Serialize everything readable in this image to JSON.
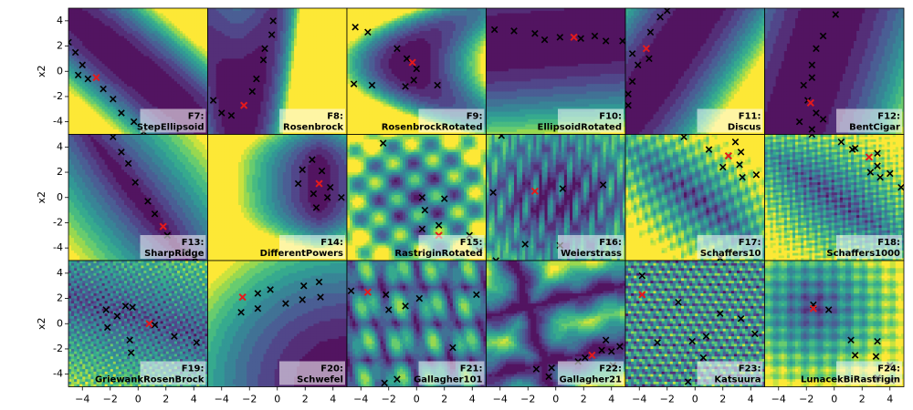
{
  "chart_data": {
    "type": "contour-grid",
    "rows": 3,
    "cols": 6,
    "xlim": [
      -5,
      5
    ],
    "ylim": [
      -5,
      5
    ],
    "xticks": [
      -4,
      -2,
      0,
      2,
      4
    ],
    "yticks": [
      -4,
      -2,
      0,
      2,
      4
    ],
    "ylabel": "x2",
    "colormap": "viridis",
    "marker_colors": {
      "sample": "#000000",
      "best": "#e41a1c"
    },
    "panels": [
      {
        "id": "F7",
        "name": "StepEllipsoid",
        "best": [
          -3,
          -0.5
        ],
        "samples": [
          [
            -5,
            2.3
          ],
          [
            -4.5,
            1.5
          ],
          [
            -4,
            0.5
          ],
          [
            -4.3,
            -0.3
          ],
          [
            -3.6,
            -0.6
          ],
          [
            -2.5,
            -1.4
          ],
          [
            -1.8,
            -2.2
          ],
          [
            -1.2,
            -3.3
          ],
          [
            -0.3,
            -4
          ],
          [
            0.4,
            -4.8
          ]
        ]
      },
      {
        "id": "F8",
        "name": "Rosenbrock",
        "best": [
          -2.4,
          -2.7
        ],
        "samples": [
          [
            -4.6,
            -2.3
          ],
          [
            -4,
            -3.3
          ],
          [
            -3.3,
            -3.5
          ],
          [
            -1.8,
            -1.6
          ],
          [
            -1.5,
            -0.6
          ],
          [
            -1,
            0.9
          ],
          [
            -0.9,
            1.8
          ],
          [
            -0.4,
            2.9
          ],
          [
            -0.3,
            4
          ]
        ]
      },
      {
        "id": "F9",
        "name": "RosenbrockRotated",
        "best": [
          -0.3,
          0.7
        ],
        "samples": [
          [
            -4.4,
            3.5
          ],
          [
            -3.5,
            3.1
          ],
          [
            -4.5,
            -1
          ],
          [
            -3.2,
            -1.1
          ],
          [
            -1.4,
            1.8
          ],
          [
            -0.7,
            1
          ],
          [
            0,
            0.2
          ],
          [
            -0.8,
            -1.2
          ],
          [
            -0.2,
            -0.7
          ],
          [
            1.5,
            -1.1
          ]
        ]
      },
      {
        "id": "F10",
        "name": "EllipsoidRotated",
        "best": [
          1.3,
          2.7
        ],
        "samples": [
          [
            -4.4,
            3.3
          ],
          [
            -3,
            3.2
          ],
          [
            -1.5,
            3
          ],
          [
            -0.8,
            2.5
          ],
          [
            0.3,
            2.7
          ],
          [
            1.8,
            2.6
          ],
          [
            2.8,
            2.8
          ],
          [
            3.6,
            2.4
          ],
          [
            4.8,
            2.4
          ]
        ]
      },
      {
        "id": "F11",
        "name": "Discus",
        "best": [
          -3.5,
          1.8
        ],
        "samples": [
          [
            -3.3,
            1
          ],
          [
            -4.5,
            1.4
          ],
          [
            -4.1,
            0.5
          ],
          [
            -4.5,
            -0.8
          ],
          [
            -4.8,
            -1.8
          ],
          [
            -4.8,
            -2.7
          ],
          [
            -3.2,
            3.1
          ],
          [
            -2.5,
            4.3
          ],
          [
            -2,
            4.8
          ]
        ]
      },
      {
        "id": "F12",
        "name": "BentCigar",
        "best": [
          -1.7,
          -2.5
        ],
        "samples": [
          [
            0.1,
            4.5
          ],
          [
            -0.8,
            2.8
          ],
          [
            -1.3,
            1.8
          ],
          [
            -1.6,
            0.5
          ],
          [
            -1.6,
            -0.5
          ],
          [
            -2.2,
            -1.1
          ],
          [
            -1.9,
            -2.3
          ],
          [
            -1.3,
            -3.3
          ],
          [
            -0.8,
            -3.8
          ],
          [
            -1.6,
            -4.6
          ],
          [
            -2.5,
            -4
          ]
        ]
      },
      {
        "id": "F13",
        "name": "SharpRidge",
        "best": [
          1.8,
          -2.3
        ],
        "samples": [
          [
            -1.8,
            4.8
          ],
          [
            -1.2,
            3.6
          ],
          [
            -0.7,
            2.7
          ],
          [
            -0.2,
            1.2
          ],
          [
            0.7,
            -0.3
          ],
          [
            1.2,
            -1.3
          ],
          [
            2.1,
            -3
          ],
          [
            3.5,
            -4.3
          ],
          [
            4.1,
            -4.8
          ]
        ]
      },
      {
        "id": "F14",
        "name": "DifferentPowers",
        "best": [
          3,
          1.1
        ],
        "samples": [
          [
            1.8,
            2.2
          ],
          [
            1.5,
            1.1
          ],
          [
            2.5,
            3
          ],
          [
            3.2,
            2.1
          ],
          [
            2.6,
            0.3
          ],
          [
            2.8,
            -0.8
          ],
          [
            3.6,
            0
          ],
          [
            3.8,
            0.8
          ],
          [
            4.6,
            0
          ]
        ]
      },
      {
        "id": "F15",
        "name": "RastriginRotated",
        "best": [
          1.6,
          -3
        ],
        "samples": [
          [
            0.4,
            0
          ],
          [
            0.6,
            -1
          ],
          [
            0.4,
            -2.5
          ],
          [
            1.6,
            -2.2
          ],
          [
            2,
            -0.1
          ],
          [
            3.8,
            -3
          ],
          [
            4.5,
            -4.2
          ],
          [
            -2.4,
            4.3
          ]
        ]
      },
      {
        "id": "F16",
        "name": "Weierstrass",
        "best": [
          -1.5,
          0.5
        ],
        "samples": [
          [
            -3.9,
            4.9
          ],
          [
            -4.5,
            0.4
          ],
          [
            -2.2,
            -3.7
          ],
          [
            0.5,
            0.7
          ],
          [
            0.3,
            -3.8
          ],
          [
            3.4,
            1
          ],
          [
            3.8,
            -3.5
          ],
          [
            -4.3,
            -5
          ]
        ]
      },
      {
        "id": "F17",
        "name": "Schaffers10",
        "best": [
          2.4,
          3.3
        ],
        "samples": [
          [
            -0.8,
            4.8
          ],
          [
            1,
            3.8
          ],
          [
            2,
            2.4
          ],
          [
            3.3,
            3.6
          ],
          [
            3.2,
            2.6
          ],
          [
            2.9,
            4.4
          ],
          [
            4.4,
            1.8
          ],
          [
            3.4,
            1.6
          ],
          [
            1.8,
            -4.8
          ]
        ]
      },
      {
        "id": "F18",
        "name": "Schaffers1000",
        "best": [
          2.5,
          3.2
        ],
        "samples": [
          [
            -1.6,
            5
          ],
          [
            0.5,
            4.4
          ],
          [
            1.3,
            3.8
          ],
          [
            1.5,
            3.9
          ],
          [
            3.1,
            2.5
          ],
          [
            2.6,
            2
          ],
          [
            3.3,
            1.6
          ],
          [
            4,
            1.9
          ],
          [
            4.8,
            0.8
          ],
          [
            3.1,
            3.5
          ]
        ]
      },
      {
        "id": "F19",
        "name": "GriewankRosenBrock",
        "best": [
          0.8,
          0
        ],
        "samples": [
          [
            -2.3,
            1.1
          ],
          [
            -2.2,
            -0.3
          ],
          [
            -1.5,
            0.6
          ],
          [
            -0.9,
            1.4
          ],
          [
            -0.4,
            1.3
          ],
          [
            -0.6,
            -1.3
          ],
          [
            -0.5,
            -2.3
          ],
          [
            1.2,
            -0.1
          ],
          [
            2.6,
            -1
          ],
          [
            4.2,
            -1.5
          ]
        ]
      },
      {
        "id": "F20",
        "name": "Schwefel",
        "best": [
          -2.5,
          2.1
        ],
        "samples": [
          [
            -2.6,
            0.9
          ],
          [
            -1.4,
            1.2
          ],
          [
            -1.4,
            2.4
          ],
          [
            -0.5,
            2.7
          ],
          [
            0.6,
            1.6
          ],
          [
            1.8,
            1.9
          ],
          [
            1.9,
            3
          ],
          [
            3,
            3.3
          ],
          [
            3.1,
            2.1
          ]
        ]
      },
      {
        "id": "F21",
        "name": "Gallagher101",
        "best": [
          -3.5,
          2.5
        ],
        "samples": [
          [
            -4.7,
            2.6
          ],
          [
            -2.2,
            2.3
          ],
          [
            -2,
            1.1
          ],
          [
            -0.8,
            1.4
          ],
          [
            0.2,
            2
          ],
          [
            4.3,
            2.3
          ],
          [
            2.6,
            -1.9
          ],
          [
            -1.4,
            -4.4
          ],
          [
            -2.3,
            -4.7
          ]
        ]
      },
      {
        "id": "F22",
        "name": "Gallagher21",
        "best": [
          2.6,
          -2.5
        ],
        "samples": [
          [
            -1.4,
            -3.6
          ],
          [
            -0.3,
            -3.5
          ],
          [
            -0.5,
            -4.2
          ],
          [
            1.6,
            -3
          ],
          [
            2.1,
            -2.7
          ],
          [
            3.3,
            -2.1
          ],
          [
            4,
            -2.2
          ],
          [
            4.6,
            -1.8
          ],
          [
            3.6,
            -1.3
          ],
          [
            4.1,
            -3.3
          ]
        ]
      },
      {
        "id": "F23",
        "name": "Katsuura",
        "best": [
          -3.8,
          2.3
        ],
        "samples": [
          [
            -3.8,
            3.8
          ],
          [
            -1.2,
            1.7
          ],
          [
            -2.7,
            -1.5
          ],
          [
            -0.2,
            -1.4
          ],
          [
            0.8,
            -1
          ],
          [
            1.8,
            0.8
          ],
          [
            3.3,
            0.4
          ],
          [
            4.3,
            -0.8
          ],
          [
            0.6,
            -2.7
          ],
          [
            -0.5,
            -4.6
          ]
        ]
      },
      {
        "id": "F24",
        "name": "LunacekBiRastrigin",
        "best": [
          -1.5,
          1.2
        ],
        "samples": [
          [
            -1.5,
            1.5
          ],
          [
            -0.4,
            1.1
          ],
          [
            1.2,
            -1.3
          ],
          [
            1.5,
            -2.5
          ],
          [
            3.1,
            -1.4
          ],
          [
            3,
            -2.6
          ],
          [
            4,
            -3.3
          ],
          [
            4.1,
            -4.5
          ],
          [
            3.1,
            -4.3
          ]
        ]
      }
    ]
  }
}
